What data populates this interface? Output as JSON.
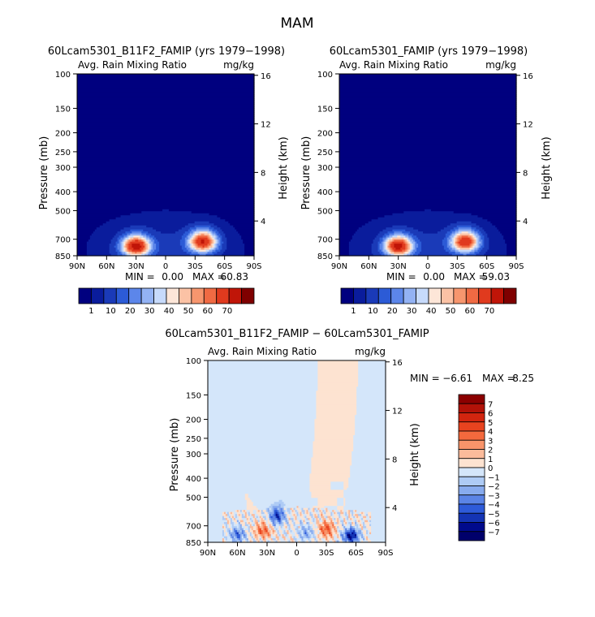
{
  "figure": {
    "main_title": "MAM"
  },
  "chart_data": [
    {
      "type": "heatmap",
      "title": "60Lcam5301_B11F2_FAMIP (yrs 1979−1998)",
      "left_label": "Avg. Rain Mixing Ratio",
      "right_label": "mg/kg",
      "xlabel": "",
      "ylabel": "Pressure (mb)",
      "y2label": "Height (km)",
      "x_ticks": [
        "90N",
        "60N",
        "30N",
        "0",
        "30S",
        "60S",
        "90S"
      ],
      "y_ticks": [
        "100",
        "150",
        "200",
        "250",
        "300",
        "400",
        "500",
        "700",
        "850"
      ],
      "y2_ticks": [
        "16",
        "12",
        "8",
        "4"
      ],
      "ylim": [
        100,
        850
      ],
      "stats": {
        "min_label": "MIN =",
        "min": "0.00",
        "max_label": "MAX =",
        "max": "60.83"
      },
      "colorbar": {
        "orientation": "horizontal",
        "labels": [
          "1",
          "10",
          "20",
          "30",
          "40",
          "50",
          "60",
          "70"
        ],
        "colors": [
          "#00007f",
          "#0a1c9c",
          "#1a3ab8",
          "#2c5bd6",
          "#5c86ea",
          "#93b2f4",
          "#c7dafb",
          "#fde6d8",
          "#fbc2a5",
          "#f7966e",
          "#f06a43",
          "#e03a1e",
          "#c01508",
          "#7f0000"
        ]
      },
      "blobs": [
        {
          "lat": 30,
          "p": 760,
          "peak": 60.8
        },
        {
          "lat": -38,
          "p": 720,
          "peak": 56
        }
      ]
    },
    {
      "type": "heatmap",
      "title": "60Lcam5301_FAMIP (yrs 1979−1998)",
      "left_label": "Avg. Rain Mixing Ratio",
      "right_label": "mg/kg",
      "xlabel": "",
      "ylabel": "Pressure (mb)",
      "y2label": "Height (km)",
      "x_ticks": [
        "90N",
        "60N",
        "30N",
        "0",
        "30S",
        "60S",
        "90S"
      ],
      "y_ticks": [
        "100",
        "150",
        "200",
        "250",
        "300",
        "400",
        "500",
        "700",
        "850"
      ],
      "y2_ticks": [
        "16",
        "12",
        "8",
        "4"
      ],
      "ylim": [
        100,
        850
      ],
      "stats": {
        "min_label": "MIN =",
        "min": "0.00",
        "max_label": "MAX =",
        "max": "59.03"
      },
      "colorbar": {
        "orientation": "horizontal",
        "labels": [
          "1",
          "10",
          "20",
          "30",
          "40",
          "50",
          "60",
          "70"
        ],
        "colors": [
          "#00007f",
          "#0a1c9c",
          "#1a3ab8",
          "#2c5bd6",
          "#5c86ea",
          "#93b2f4",
          "#c7dafb",
          "#fde6d8",
          "#fbc2a5",
          "#f7966e",
          "#f06a43",
          "#e03a1e",
          "#c01508",
          "#7f0000"
        ]
      },
      "blobs": [
        {
          "lat": 30,
          "p": 760,
          "peak": 59.0
        },
        {
          "lat": -38,
          "p": 720,
          "peak": 54
        }
      ]
    },
    {
      "type": "heatmap",
      "title": "60Lcam5301_B11F2_FAMIP − 60Lcam5301_FAMIP",
      "left_label": "Avg. Rain Mixing Ratio",
      "right_label": "mg/kg",
      "xlabel": "",
      "ylabel": "Pressure (mb)",
      "y2label": "Height (km)",
      "x_ticks": [
        "90N",
        "60N",
        "30N",
        "0",
        "30S",
        "60S",
        "90S"
      ],
      "y_ticks": [
        "100",
        "150",
        "200",
        "250",
        "300",
        "400",
        "500",
        "700",
        "850"
      ],
      "y2_ticks": [
        "16",
        "12",
        "8",
        "4"
      ],
      "ylim": [
        100,
        850
      ],
      "stats": {
        "min_label": "MIN =",
        "min": "−6.61",
        "max_label": "MAX =",
        "max": "8.25"
      },
      "colorbar": {
        "orientation": "vertical",
        "labels": [
          "7",
          "6",
          "5",
          "4",
          "3",
          "2",
          "1",
          "0",
          "−1",
          "−2",
          "−3",
          "−4",
          "−5",
          "−6",
          "−7"
        ],
        "colors": [
          "#8b0000",
          "#b21208",
          "#d2250f",
          "#e8431f",
          "#f4693d",
          "#f8946a",
          "#fbbb9b",
          "#fde3d1",
          "#d4e6fa",
          "#aecbf5",
          "#88abee",
          "#5b84e6",
          "#2e5bd9",
          "#1434b4",
          "#000a8c",
          "#00006b"
        ]
      },
      "features": [
        {
          "lat": 34,
          "p": 740,
          "value": 3.5
        },
        {
          "lat": -30,
          "p": 730,
          "value": 3.8
        },
        {
          "lat": 20,
          "p": 620,
          "value": -5
        },
        {
          "lat": -55,
          "p": 790,
          "value": -6.6
        },
        {
          "lat": 60,
          "p": 780,
          "value": -4
        },
        {
          "lat": -10,
          "p": 760,
          "value": -2.5
        }
      ]
    }
  ]
}
